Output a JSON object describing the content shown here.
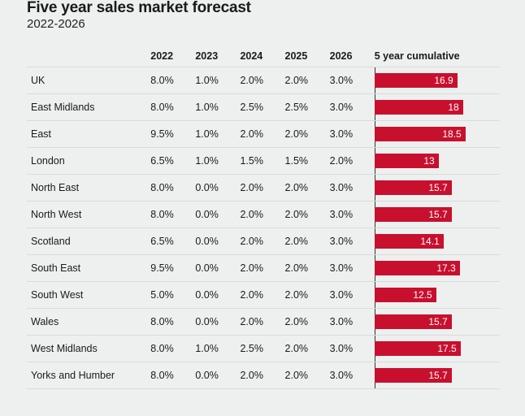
{
  "title": "Five year sales market forecast",
  "subtitle": "2022-2026",
  "columns": [
    "2022",
    "2023",
    "2024",
    "2025",
    "2026",
    "5 year cumulative"
  ],
  "colors": {
    "bar": "#c8102e"
  },
  "chart_data": {
    "type": "table",
    "title": "Five year sales market forecast",
    "subtitle": "2022-2026",
    "columns": [
      "2022",
      "2023",
      "2024",
      "2025",
      "2026",
      "5 year cumulative"
    ],
    "cumulative_max": 18.5,
    "rows": [
      {
        "region": "UK",
        "values": [
          "8.0%",
          "1.0%",
          "2.0%",
          "2.0%",
          "3.0%"
        ],
        "cumulative": 16.9
      },
      {
        "region": "East Midlands",
        "values": [
          "8.0%",
          "1.0%",
          "2.5%",
          "2.5%",
          "3.0%"
        ],
        "cumulative": 18
      },
      {
        "region": "East",
        "values": [
          "9.5%",
          "1.0%",
          "2.0%",
          "2.0%",
          "3.0%"
        ],
        "cumulative": 18.5
      },
      {
        "region": "London",
        "values": [
          "6.5%",
          "1.0%",
          "1.5%",
          "1.5%",
          "2.0%"
        ],
        "cumulative": 13
      },
      {
        "region": "North East",
        "values": [
          "8.0%",
          "0.0%",
          "2.0%",
          "2.0%",
          "3.0%"
        ],
        "cumulative": 15.7
      },
      {
        "region": "North West",
        "values": [
          "8.0%",
          "0.0%",
          "2.0%",
          "2.0%",
          "3.0%"
        ],
        "cumulative": 15.7
      },
      {
        "region": "Scotland",
        "values": [
          "6.5%",
          "0.0%",
          "2.0%",
          "2.0%",
          "3.0%"
        ],
        "cumulative": 14.1
      },
      {
        "region": "South East",
        "values": [
          "9.5%",
          "0.0%",
          "2.0%",
          "2.0%",
          "3.0%"
        ],
        "cumulative": 17.3
      },
      {
        "region": "South West",
        "values": [
          "5.0%",
          "0.0%",
          "2.0%",
          "2.0%",
          "3.0%"
        ],
        "cumulative": 12.5
      },
      {
        "region": "Wales",
        "values": [
          "8.0%",
          "0.0%",
          "2.0%",
          "2.0%",
          "3.0%"
        ],
        "cumulative": 15.7
      },
      {
        "region": "West Midlands",
        "values": [
          "8.0%",
          "1.0%",
          "2.5%",
          "2.0%",
          "3.0%"
        ],
        "cumulative": 17.5
      },
      {
        "region": "Yorks and Humber",
        "values": [
          "8.0%",
          "0.0%",
          "2.0%",
          "2.0%",
          "3.0%"
        ],
        "cumulative": 15.7
      }
    ]
  }
}
